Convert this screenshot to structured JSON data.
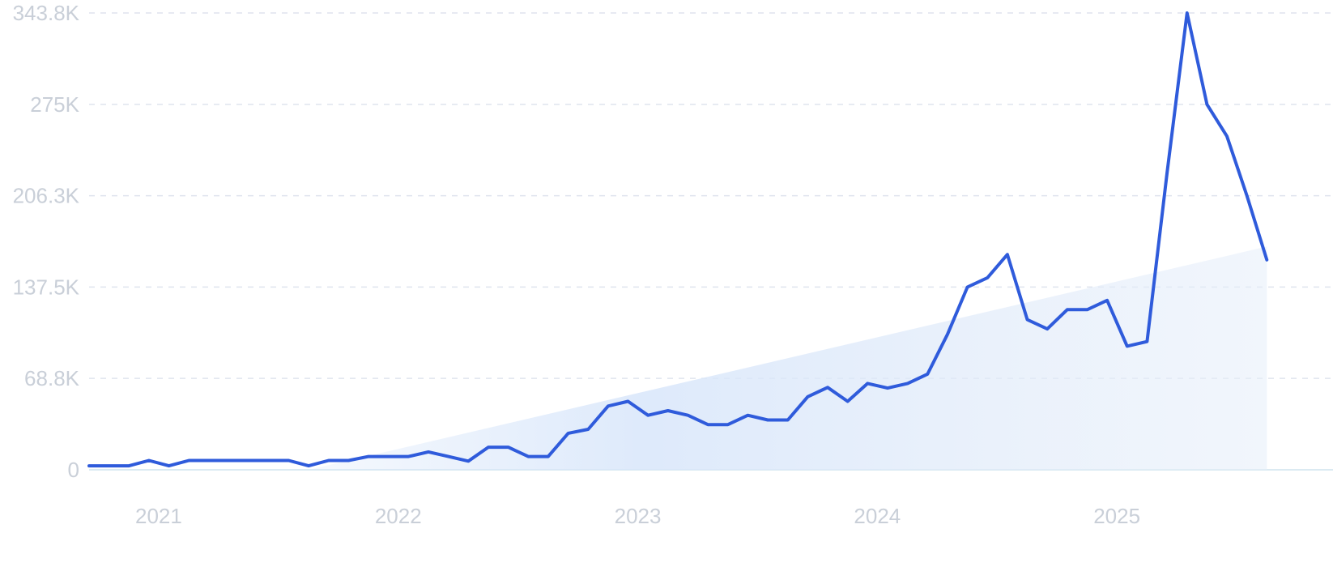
{
  "chart_data": {
    "type": "line",
    "title": "",
    "xlabel": "",
    "ylabel": "",
    "y_ticks": [
      "0",
      "68.8K",
      "137.5K",
      "206.3K",
      "275K",
      "343.8K"
    ],
    "y_tick_values": [
      0,
      68800,
      137500,
      206300,
      275000,
      343800
    ],
    "ylim": [
      0,
      343800
    ],
    "x_ticks": [
      "2021",
      "2022",
      "2023",
      "2024",
      "2025"
    ],
    "x_tick_values": [
      "2021-01",
      "2022-01",
      "2023-01",
      "2024-01",
      "2025-01"
    ],
    "xlim": [
      "2020-10",
      "2025-09"
    ],
    "grid": true,
    "line_color": "#2f5bdb",
    "trend_fill_color": "#dce9fb",
    "series": [
      {
        "x": [
          "2020-10",
          "2020-11",
          "2020-12",
          "2021-01",
          "2021-02",
          "2021-03",
          "2021-04",
          "2021-05",
          "2021-06",
          "2021-07",
          "2021-08",
          "2021-09",
          "2021-10",
          "2021-11",
          "2021-12",
          "2022-01",
          "2022-02",
          "2022-03",
          "2022-04",
          "2022-05",
          "2022-06",
          "2022-07",
          "2022-08",
          "2022-09",
          "2022-10",
          "2022-11",
          "2022-12",
          "2023-01",
          "2023-02",
          "2023-03",
          "2023-04",
          "2023-05",
          "2023-06",
          "2023-07",
          "2023-08",
          "2023-09",
          "2023-10",
          "2023-11",
          "2023-12",
          "2024-01",
          "2024-02",
          "2024-03",
          "2024-04",
          "2024-05",
          "2024-06",
          "2024-07",
          "2024-08",
          "2024-09",
          "2024-10",
          "2024-11",
          "2024-12",
          "2025-01",
          "2025-02",
          "2025-03",
          "2025-04",
          "2025-05",
          "2025-06",
          "2025-07",
          "2025-08",
          "2025-09"
        ],
        "values": [
          3000,
          3000,
          3000,
          7000,
          3000,
          7000,
          7000,
          7000,
          7000,
          7000,
          7000,
          3000,
          7000,
          7000,
          10000,
          10000,
          10000,
          13500,
          10000,
          6500,
          17000,
          17000,
          10000,
          10000,
          27500,
          30500,
          48000,
          51500,
          41000,
          44500,
          41000,
          34000,
          34000,
          41000,
          37500,
          37500,
          55000,
          62000,
          51500,
          65000,
          61500,
          65000,
          72000,
          102000,
          137500,
          144500,
          162000,
          113000,
          106000,
          120500,
          120500,
          127500,
          93000,
          96500,
          223500,
          343800,
          275000,
          251000,
          206300,
          158000
        ]
      }
    ],
    "trend": {
      "start": [
        "2021-09",
        0
      ],
      "end": [
        "2025-09",
        168000
      ]
    }
  }
}
